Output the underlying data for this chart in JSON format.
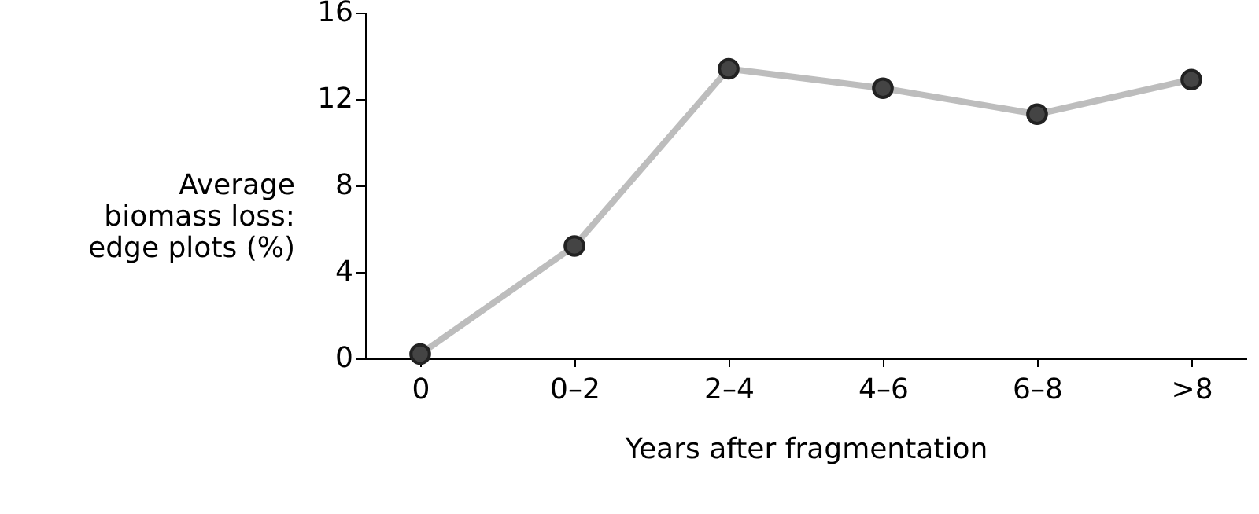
{
  "chart_data": {
    "type": "line",
    "categories": [
      "0",
      "0–2",
      "2–4",
      "4–6",
      "6–8",
      ">8"
    ],
    "series": [
      {
        "color": "#bdbdbd",
        "values": [
          0.2,
          5.2,
          13.4,
          12.5,
          11.3,
          12.9
        ]
      }
    ],
    "xlabel": "Years after fragmentation",
    "ylabel": "Average\nbiomass loss:\nedge plots (%)",
    "ylim": [
      0,
      16
    ],
    "yticks": [
      0,
      4,
      8,
      12,
      16
    ],
    "grid": false,
    "marker": "circle",
    "line_style": "solid"
  }
}
